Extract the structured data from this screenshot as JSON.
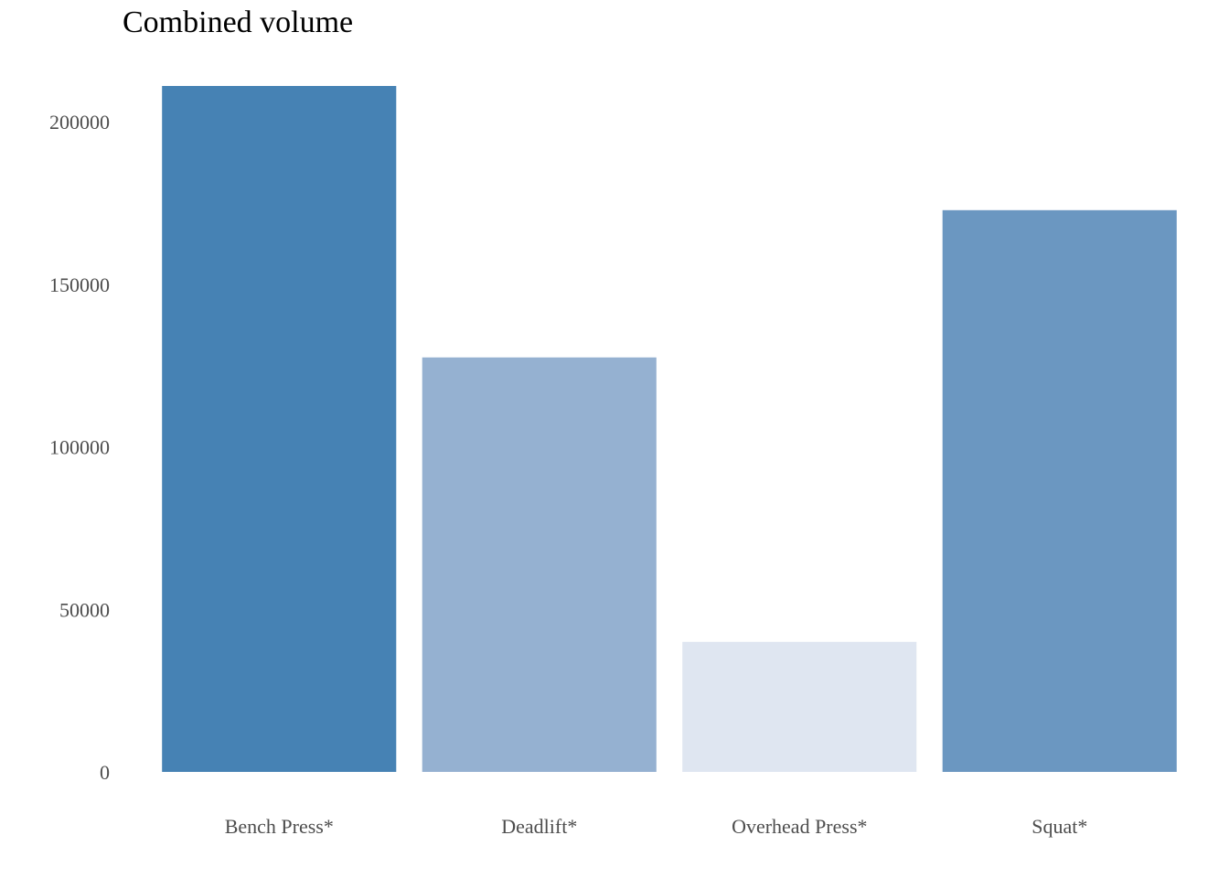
{
  "chart_data": {
    "type": "bar",
    "title": "Combined volume",
    "xlabel": "",
    "ylabel": "",
    "categories": [
      "Bench Press*",
      "Deadlift*",
      "Overhead Press*",
      "Squat*"
    ],
    "values": [
      211000,
      127500,
      40000,
      172800
    ],
    "colors": [
      "#4682b4",
      "#95b1d1",
      "#dfe6f1",
      "#6b97c1"
    ],
    "ylim": [
      0,
      211000
    ],
    "yticks": [
      0,
      50000,
      100000,
      150000,
      200000
    ],
    "grid": false,
    "legend": "none"
  }
}
